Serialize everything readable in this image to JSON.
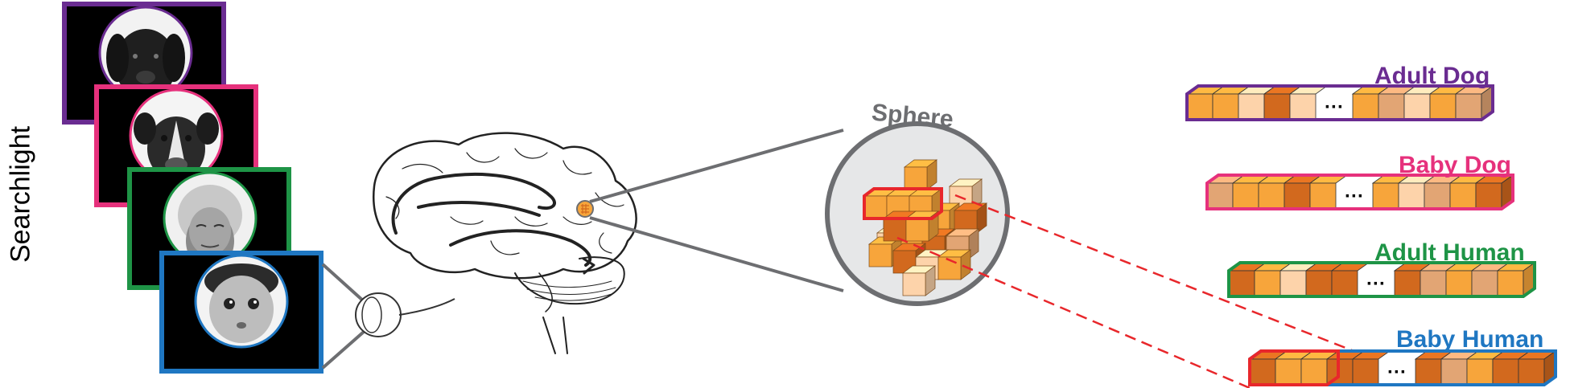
{
  "method_label": "Searchlight",
  "sphere_label": "Sphere",
  "categories": [
    {
      "key": "adult_dog",
      "label": "Adult Dog",
      "color": "#6a2c91",
      "face": "adult-dog"
    },
    {
      "key": "baby_dog",
      "label": "Baby Dog",
      "color": "#e6317c",
      "face": "puppy"
    },
    {
      "key": "adult_human",
      "label": "Adult Human",
      "color": "#1e9446",
      "face": "elderly-woman"
    },
    {
      "key": "baby_human",
      "label": "Baby Human",
      "color": "#1f77c2",
      "face": "baby"
    }
  ],
  "ellipsis": "···",
  "palette": {
    "voxel_light": "#fdd3aa",
    "voxel_mid": "#f7a53b",
    "voxel_dark": "#d2691e",
    "voxel_tan": "#e2a574",
    "highlight": "#e8272b",
    "gray": "#6d6e71"
  }
}
